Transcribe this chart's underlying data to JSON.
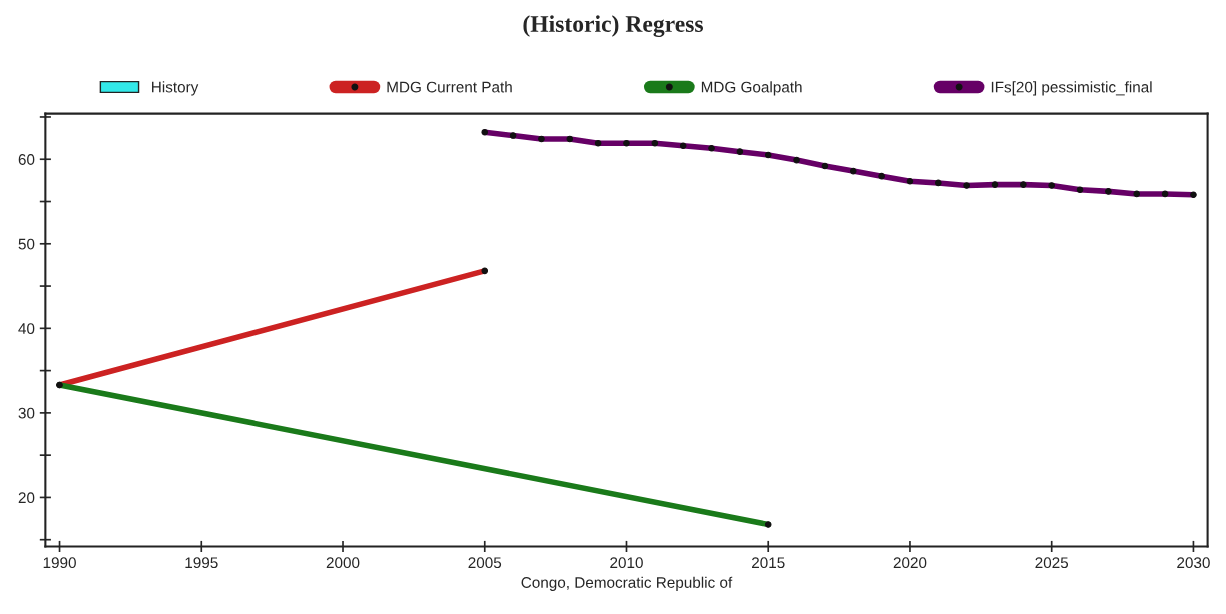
{
  "chart_data": {
    "type": "line",
    "title": "(Historic) Regress",
    "xlabel": "Congo, Democratic Republic of",
    "series": [
      {
        "name": "History",
        "color": "#33e8e8"
      },
      {
        "name": "MDG Current Path",
        "color": "#cc2222",
        "x": [
          1990,
          2005
        ],
        "values": [
          33.3,
          46.8
        ]
      },
      {
        "name": "MDG Goalpath",
        "color": "#1a7a1a",
        "x": [
          1990,
          2015
        ],
        "values": [
          33.3,
          16.8
        ]
      },
      {
        "name": "IFs[20] pessimistic_final",
        "color": "#660066",
        "x": [
          2005,
          2006,
          2007,
          2008,
          2009,
          2010,
          2011,
          2012,
          2013,
          2014,
          2015,
          2016,
          2017,
          2018,
          2019,
          2020,
          2021,
          2022,
          2023,
          2024,
          2025,
          2026,
          2027,
          2028,
          2029,
          2030
        ],
        "values": [
          63.2,
          62.8,
          62.4,
          62.4,
          61.9,
          61.9,
          61.9,
          61.6,
          61.3,
          60.9,
          60.5,
          59.9,
          59.2,
          58.6,
          58.0,
          57.4,
          57.2,
          56.9,
          57.0,
          57.0,
          56.9,
          56.4,
          56.2,
          55.9,
          55.9,
          55.8
        ]
      }
    ],
    "xlim": [
      1989.5,
      2030.5
    ],
    "xticks": [
      1990,
      1995,
      2000,
      2005,
      2010,
      2015,
      2020,
      2025,
      2030
    ],
    "ylim": [
      14.2,
      65.4
    ],
    "yticks": [
      {
        "value": 15,
        "label": null
      },
      20,
      {
        "value": 25,
        "label": null
      },
      30,
      {
        "value": 35,
        "label": null
      },
      40,
      {
        "value": 45,
        "label": null
      },
      50,
      {
        "value": 55,
        "label": null
      },
      60,
      {
        "value": 65,
        "label": null
      }
    ],
    "grid": false,
    "legend": "top",
    "marker": "circle",
    "line_style": "solid"
  }
}
